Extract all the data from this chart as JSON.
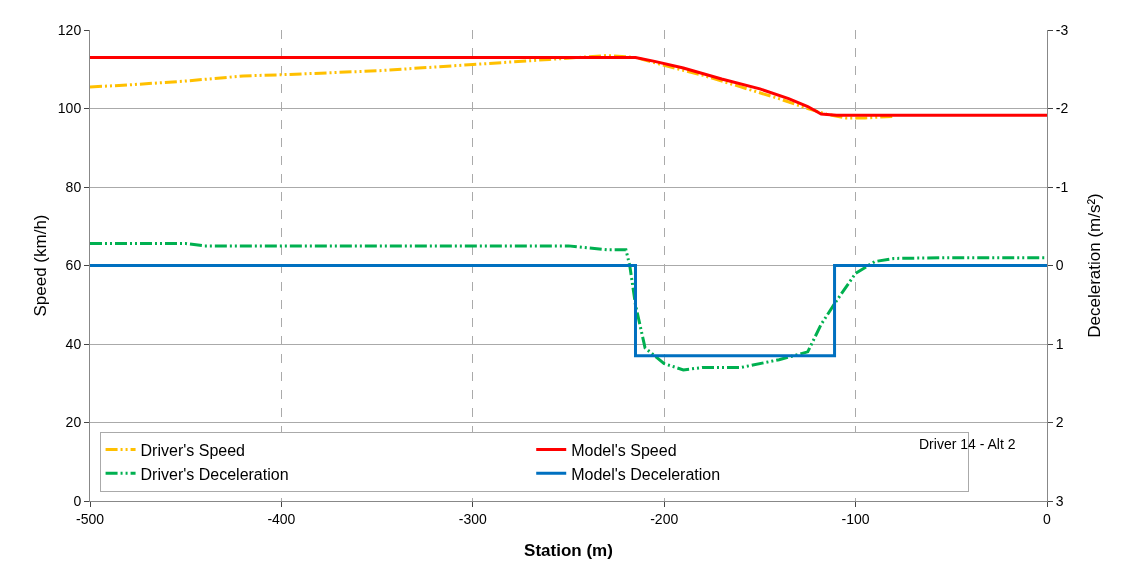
{
  "chart_data": {
    "type": "line",
    "xlabel": "Station (m)",
    "ylabel": "Speed (km/h)",
    "y2label": "Deceleration (m/s²)",
    "xlim": [
      -500,
      0
    ],
    "xticks": [
      -500,
      -400,
      -300,
      -200,
      -100,
      0
    ],
    "ylim": [
      0,
      120
    ],
    "yticks": [
      0,
      20,
      40,
      60,
      80,
      100,
      120
    ],
    "y2lim": [
      3,
      -3
    ],
    "y2ticks": [
      3,
      2,
      1,
      0,
      -1,
      -2,
      -3
    ],
    "grid": true,
    "legend": "bottom left",
    "marker": "none",
    "annotations": [
      "Driver 14 - Alt 2"
    ],
    "series": [
      {
        "name": "Driver's Speed",
        "color": "#ffc000",
        "line_style": "dashed",
        "x": [
          -500,
          -480,
          -450,
          -420,
          -400,
          -350,
          -300,
          -260,
          -230,
          -215,
          -200,
          -180,
          -160,
          -140,
          -125,
          -115,
          -105,
          -95,
          -80
        ],
        "values": [
          105.5,
          106,
          107,
          108.3,
          108.6,
          109.6,
          111.2,
          112.5,
          113.5,
          113,
          111,
          108.5,
          105.5,
          102.5,
          100,
          98.5,
          97.6,
          97.6,
          98
        ]
      },
      {
        "name": "Model's Speed",
        "color": "#ff0000",
        "line_style": "solid",
        "x": [
          -500,
          -215,
          -205,
          -190,
          -170,
          -150,
          -135,
          -125,
          -118,
          -110,
          -50,
          0
        ],
        "values": [
          113,
          113,
          112,
          110.3,
          107.5,
          105,
          102.5,
          100.5,
          98.6,
          98.3,
          98.3,
          98.3
        ]
      },
      {
        "name": "Driver's Deceleration",
        "color": "#00b050",
        "line_style": "dashed",
        "axis": "y2",
        "x": [
          -500,
          -450,
          -440,
          -400,
          -300,
          -250,
          -230,
          -220,
          -218,
          -215,
          -210,
          -200,
          -190,
          -180,
          -160,
          -140,
          -125,
          -118,
          -110,
          -100,
          -90,
          -80,
          -50,
          0
        ],
        "values": [
          -0.28,
          -0.28,
          -0.25,
          -0.25,
          -0.25,
          -0.25,
          -0.2,
          -0.2,
          0,
          0.5,
          1.05,
          1.25,
          1.33,
          1.3,
          1.3,
          1.2,
          1.1,
          0.75,
          0.45,
          0.1,
          -0.05,
          -0.09,
          -0.1,
          -0.1
        ]
      },
      {
        "name": "Model's Deceleration",
        "color": "#0070c0",
        "line_style": "solid",
        "axis": "y2",
        "x": [
          -500,
          -215,
          -215,
          -111,
          -111,
          0
        ],
        "values": [
          0,
          0,
          1.15,
          1.15,
          0,
          0
        ]
      }
    ]
  }
}
